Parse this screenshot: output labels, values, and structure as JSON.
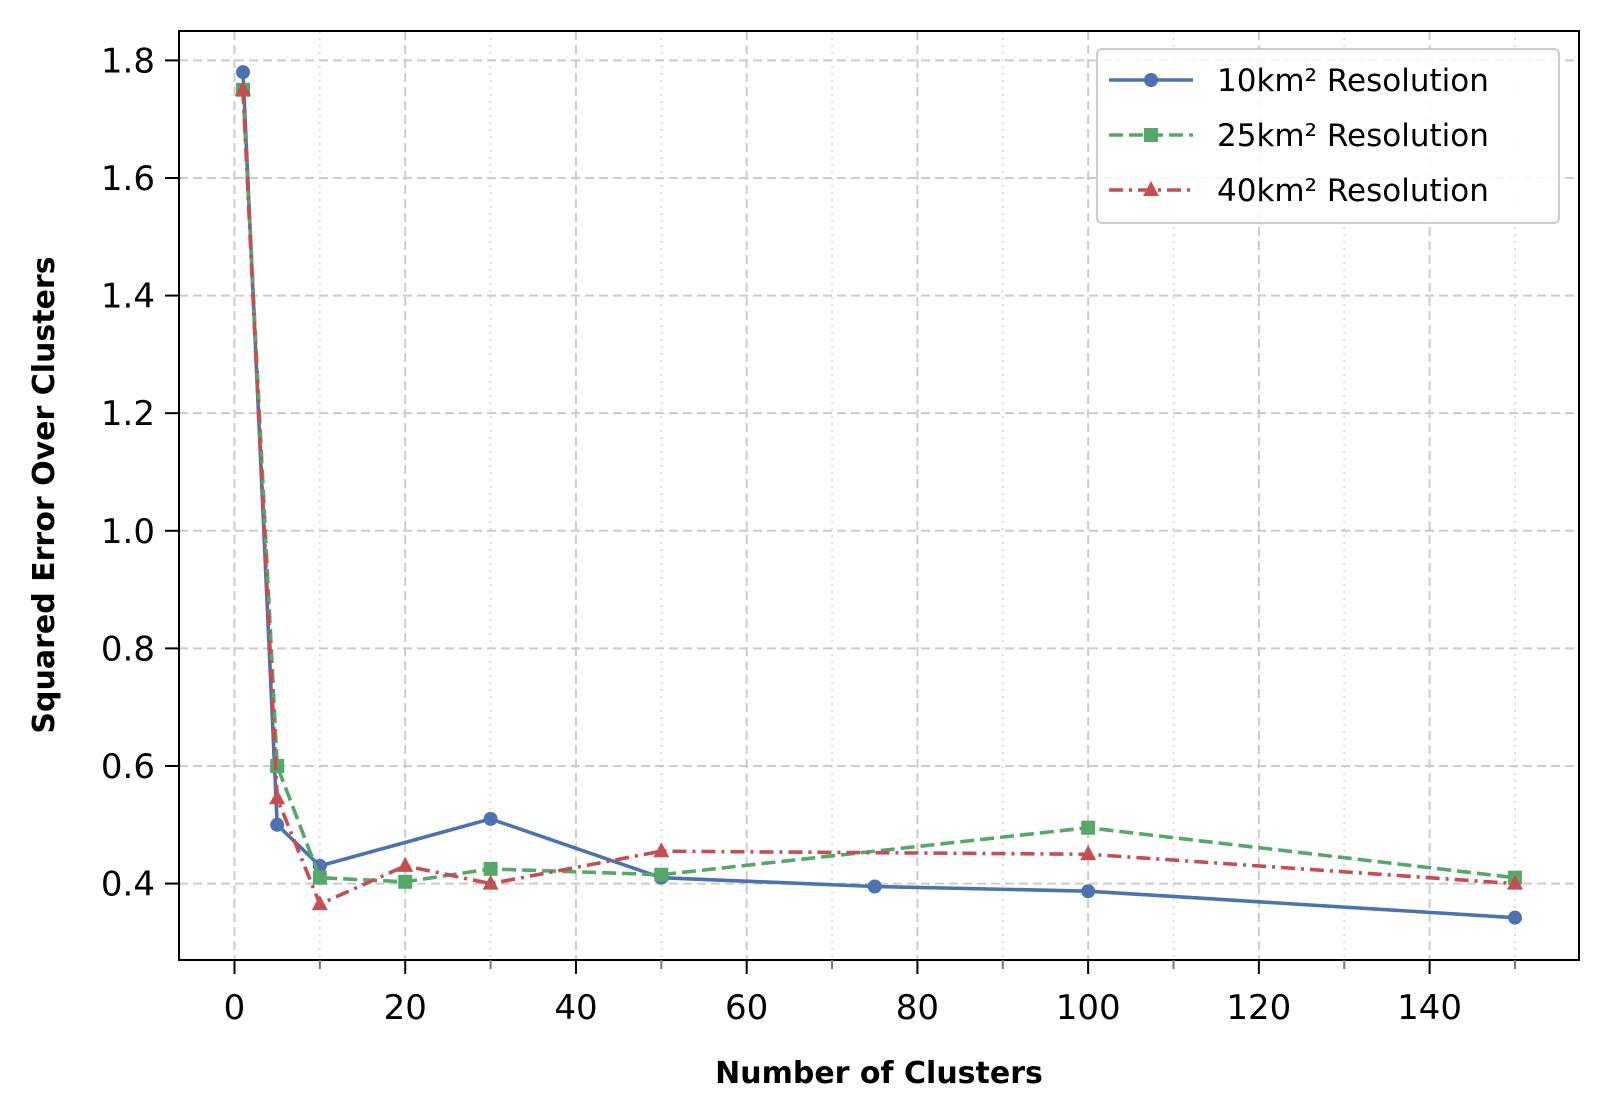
{
  "chart_data": {
    "type": "line",
    "xlabel": "Number of Clusters",
    "ylabel": "Squared Error Over Clusters",
    "xlim": [
      -6.5,
      157.5
    ],
    "ylim": [
      0.27,
      1.85
    ],
    "x_major_ticks": [
      0,
      20,
      40,
      60,
      80,
      100,
      120,
      140
    ],
    "x_minor_ticks": [
      10,
      30,
      50,
      70,
      90,
      110,
      130,
      150
    ],
    "y_ticks": [
      0.4,
      0.6,
      0.8,
      1.0,
      1.2,
      1.4,
      1.6,
      1.8
    ],
    "x_tick_labels": [
      "0",
      "20",
      "40",
      "60",
      "80",
      "100",
      "120",
      "140"
    ],
    "y_tick_labels": [
      "0.4",
      "0.6",
      "0.8",
      "1.0",
      "1.2",
      "1.4",
      "1.6",
      "1.8"
    ],
    "grid": true,
    "legend_position": "top-right",
    "series": [
      {
        "name": "10km² Resolution",
        "color": "#4c72b0",
        "line_style": "solid",
        "marker": "circle",
        "x": [
          1,
          5,
          10,
          30,
          50,
          75,
          100,
          150
        ],
        "y": [
          1.78,
          0.5,
          0.43,
          0.51,
          0.41,
          0.395,
          0.387,
          0.342
        ]
      },
      {
        "name": "25km² Resolution",
        "color": "#55a868",
        "line_style": "dashed",
        "marker": "square",
        "x": [
          1,
          5,
          10,
          20,
          30,
          50,
          100,
          150
        ],
        "y": [
          1.75,
          0.6,
          0.41,
          0.403,
          0.425,
          0.415,
          0.495,
          0.41
        ]
      },
      {
        "name": "40km² Resolution",
        "color": "#c44e52",
        "line_style": "dashdot",
        "marker": "triangle",
        "x": [
          1,
          5,
          10,
          20,
          30,
          50,
          100,
          150
        ],
        "y": [
          1.75,
          0.545,
          0.365,
          0.43,
          0.4,
          0.455,
          0.45,
          0.4
        ]
      }
    ]
  }
}
